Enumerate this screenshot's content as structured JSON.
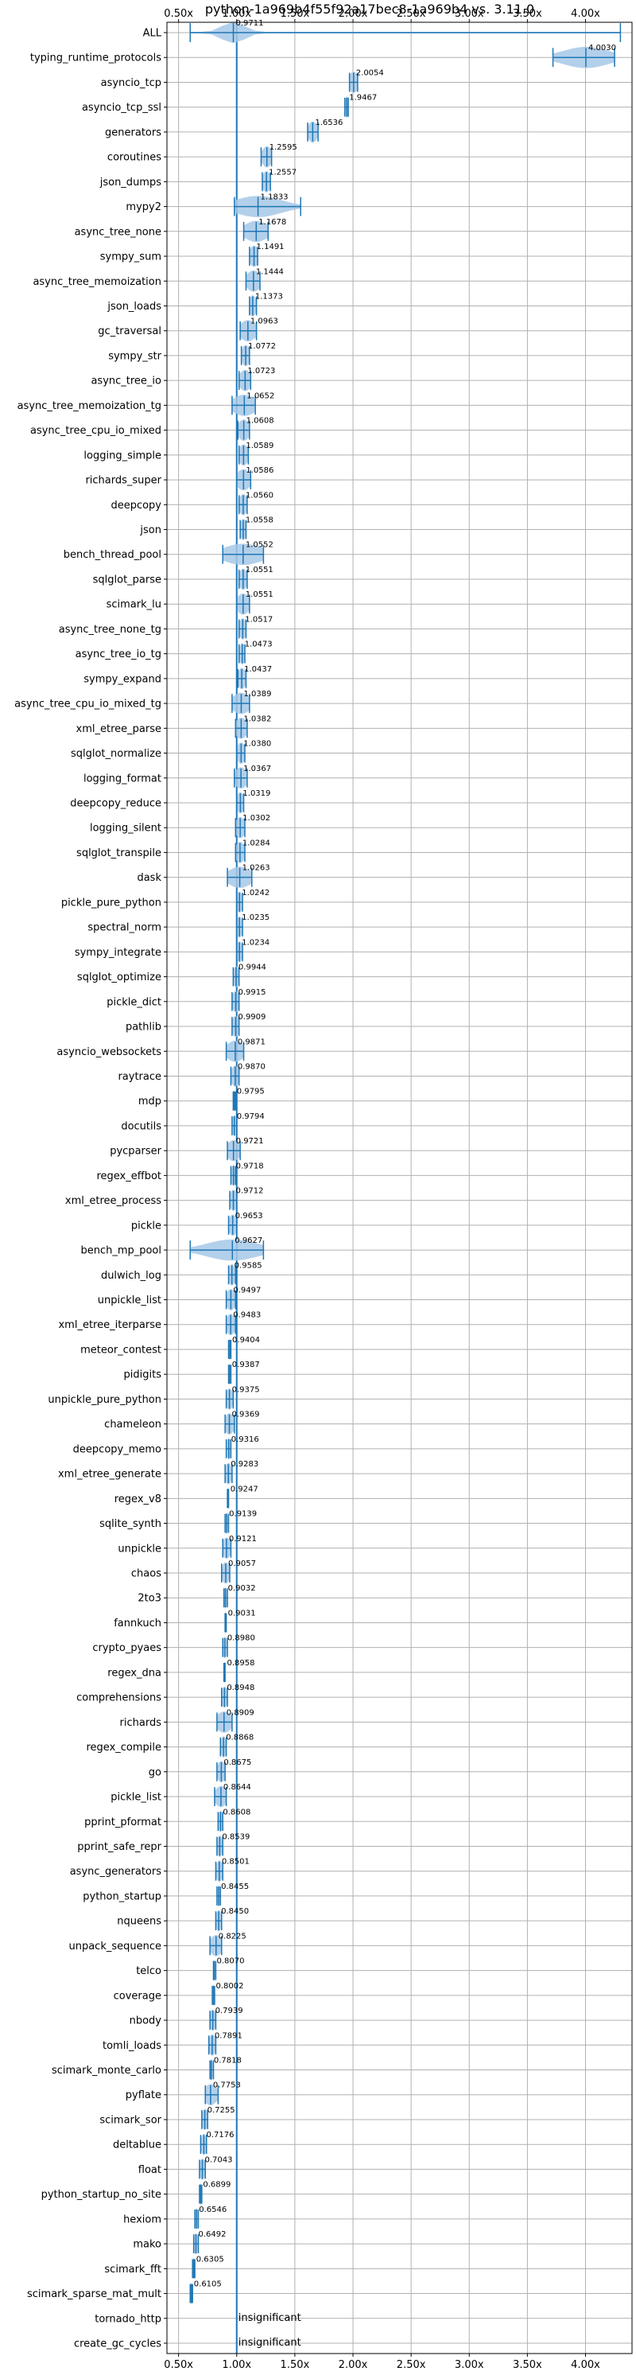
{
  "chart_data": {
    "type": "violin",
    "title": "python-1a969b4f55f92a17bec8-1a969b4 vs. 3.11.0",
    "xlabel": "",
    "ylabel": "",
    "xlim": [
      0.4,
      4.4
    ],
    "x_ticks": [
      0.5,
      1.0,
      1.5,
      2.0,
      2.5,
      3.0,
      3.5,
      4.0
    ],
    "x_tick_labels": [
      "0.50x",
      "1.00x",
      "1.50x",
      "2.00x",
      "2.50x",
      "3.00x",
      "3.50x",
      "4.00x"
    ],
    "reference_line": 1.0,
    "grid": true,
    "colors": {
      "violin": "#a6c8e8",
      "marker": "#1f77b4",
      "reference": "#1f77b4",
      "grid": "#b0b0b0"
    },
    "benchmarks": [
      {
        "name": "ALL",
        "value": 0.9711,
        "label": "0.9711",
        "lo": 0.6,
        "hi": 4.3,
        "w": 0.1
      },
      {
        "name": "typing_runtime_protocols",
        "value": 4.003,
        "label": "4.0030",
        "lo": 3.72,
        "hi": 4.25,
        "w": 0.2
      },
      {
        "name": "asyncio_tcp",
        "value": 2.0054,
        "label": "2.0054",
        "lo": 1.97,
        "hi": 2.04,
        "w": 0.04
      },
      {
        "name": "asyncio_tcp_ssl",
        "value": 1.9467,
        "label": "1.9467",
        "lo": 1.93,
        "hi": 1.96,
        "w": 0.015
      },
      {
        "name": "generators",
        "value": 1.6536,
        "label": "1.6536",
        "lo": 1.61,
        "hi": 1.7,
        "w": 0.04
      },
      {
        "name": "coroutines",
        "value": 1.2595,
        "label": "1.2595",
        "lo": 1.21,
        "hi": 1.3,
        "w": 0.04
      },
      {
        "name": "json_dumps",
        "value": 1.2557,
        "label": "1.2557",
        "lo": 1.22,
        "hi": 1.29,
        "w": 0.035
      },
      {
        "name": "mypy2",
        "value": 1.1833,
        "label": "1.1833",
        "lo": 0.98,
        "hi": 1.55,
        "w": 0.2
      },
      {
        "name": "async_tree_none",
        "value": 1.1678,
        "label": "1.1678",
        "lo": 1.06,
        "hi": 1.27,
        "w": 0.1
      },
      {
        "name": "sympy_sum",
        "value": 1.1491,
        "label": "1.1491",
        "lo": 1.11,
        "hi": 1.18,
        "w": 0.04
      },
      {
        "name": "async_tree_memoization",
        "value": 1.1444,
        "label": "1.1444",
        "lo": 1.08,
        "hi": 1.2,
        "w": 0.06
      },
      {
        "name": "json_loads",
        "value": 1.1373,
        "label": "1.1373",
        "lo": 1.11,
        "hi": 1.17,
        "w": 0.03
      },
      {
        "name": "gc_traversal",
        "value": 1.0963,
        "label": "1.0963",
        "lo": 1.03,
        "hi": 1.17,
        "w": 0.07
      },
      {
        "name": "sympy_str",
        "value": 1.0772,
        "label": "1.0772",
        "lo": 1.04,
        "hi": 1.11,
        "w": 0.035
      },
      {
        "name": "async_tree_io",
        "value": 1.0723,
        "label": "1.0723",
        "lo": 1.02,
        "hi": 1.12,
        "w": 0.05
      },
      {
        "name": "async_tree_memoization_tg",
        "value": 1.0652,
        "label": "1.0652",
        "lo": 0.96,
        "hi": 1.16,
        "w": 0.1
      },
      {
        "name": "async_tree_cpu_io_mixed",
        "value": 1.0608,
        "label": "1.0608",
        "lo": 1.01,
        "hi": 1.11,
        "w": 0.05
      },
      {
        "name": "logging_simple",
        "value": 1.0589,
        "label": "1.0589",
        "lo": 1.02,
        "hi": 1.1,
        "w": 0.04
      },
      {
        "name": "richards_super",
        "value": 1.0586,
        "label": "1.0586",
        "lo": 1.0,
        "hi": 1.12,
        "w": 0.06
      },
      {
        "name": "deepcopy",
        "value": 1.056,
        "label": "1.0560",
        "lo": 1.02,
        "hi": 1.09,
        "w": 0.035
      },
      {
        "name": "json",
        "value": 1.0558,
        "label": "1.0558",
        "lo": 1.03,
        "hi": 1.08,
        "w": 0.025
      },
      {
        "name": "bench_thread_pool",
        "value": 1.0552,
        "label": "1.0552",
        "lo": 0.88,
        "hi": 1.23,
        "w": 0.17
      },
      {
        "name": "sqlglot_parse",
        "value": 1.0551,
        "label": "1.0551",
        "lo": 1.02,
        "hi": 1.09,
        "w": 0.035
      },
      {
        "name": "scimark_lu",
        "value": 1.0551,
        "label": "1.0551",
        "lo": 1.0,
        "hi": 1.11,
        "w": 0.055
      },
      {
        "name": "async_tree_none_tg",
        "value": 1.0517,
        "label": "1.0517",
        "lo": 1.02,
        "hi": 1.08,
        "w": 0.03
      },
      {
        "name": "async_tree_io_tg",
        "value": 1.0473,
        "label": "1.0473",
        "lo": 1.02,
        "hi": 1.07,
        "w": 0.025
      },
      {
        "name": "sympy_expand",
        "value": 1.0437,
        "label": "1.0437",
        "lo": 1.01,
        "hi": 1.08,
        "w": 0.035
      },
      {
        "name": "async_tree_cpu_io_mixed_tg",
        "value": 1.0389,
        "label": "1.0389",
        "lo": 0.96,
        "hi": 1.11,
        "w": 0.075
      },
      {
        "name": "xml_etree_parse",
        "value": 1.0382,
        "label": "1.0382",
        "lo": 0.99,
        "hi": 1.09,
        "w": 0.05
      },
      {
        "name": "sqlglot_normalize",
        "value": 1.038,
        "label": "1.0380",
        "lo": 1.0,
        "hi": 1.07,
        "w": 0.035
      },
      {
        "name": "logging_format",
        "value": 1.0367,
        "label": "1.0367",
        "lo": 0.98,
        "hi": 1.09,
        "w": 0.055
      },
      {
        "name": "deepcopy_reduce",
        "value": 1.0319,
        "label": "1.0319",
        "lo": 1.0,
        "hi": 1.06,
        "w": 0.03
      },
      {
        "name": "logging_silent",
        "value": 1.0302,
        "label": "1.0302",
        "lo": 0.99,
        "hi": 1.07,
        "w": 0.04
      },
      {
        "name": "sqlglot_transpile",
        "value": 1.0284,
        "label": "1.0284",
        "lo": 0.99,
        "hi": 1.07,
        "w": 0.04
      },
      {
        "name": "dask",
        "value": 1.0263,
        "label": "1.0263",
        "lo": 0.92,
        "hi": 1.13,
        "w": 0.1
      },
      {
        "name": "pickle_pure_python",
        "value": 1.0242,
        "label": "1.0242",
        "lo": 1.0,
        "hi": 1.05,
        "w": 0.025
      },
      {
        "name": "spectral_norm",
        "value": 1.0235,
        "label": "1.0235",
        "lo": 1.0,
        "hi": 1.05,
        "w": 0.025
      },
      {
        "name": "sympy_integrate",
        "value": 1.0234,
        "label": "1.0234",
        "lo": 1.0,
        "hi": 1.05,
        "w": 0.025
      },
      {
        "name": "sqlglot_optimize",
        "value": 0.9944,
        "label": "0.9944",
        "lo": 0.97,
        "hi": 1.02,
        "w": 0.025
      },
      {
        "name": "pickle_dict",
        "value": 0.9915,
        "label": "0.9915",
        "lo": 0.96,
        "hi": 1.02,
        "w": 0.03
      },
      {
        "name": "pathlib",
        "value": 0.9909,
        "label": "0.9909",
        "lo": 0.96,
        "hi": 1.02,
        "w": 0.03
      },
      {
        "name": "asyncio_websockets",
        "value": 0.9871,
        "label": "0.9871",
        "lo": 0.91,
        "hi": 1.06,
        "w": 0.075
      },
      {
        "name": "raytrace",
        "value": 0.987,
        "label": "0.9870",
        "lo": 0.95,
        "hi": 1.02,
        "w": 0.035
      },
      {
        "name": "mdp",
        "value": 0.9795,
        "label": "0.9795",
        "lo": 0.97,
        "hi": 0.99,
        "w": 0.01
      },
      {
        "name": "docutils",
        "value": 0.9794,
        "label": "0.9794",
        "lo": 0.96,
        "hi": 1.0,
        "w": 0.02
      },
      {
        "name": "pycparser",
        "value": 0.9721,
        "label": "0.9721",
        "lo": 0.92,
        "hi": 1.03,
        "w": 0.055
      },
      {
        "name": "regex_effbot",
        "value": 0.9718,
        "label": "0.9718",
        "lo": 0.95,
        "hi": 0.99,
        "w": 0.02
      },
      {
        "name": "xml_etree_process",
        "value": 0.9712,
        "label": "0.9712",
        "lo": 0.94,
        "hi": 1.0,
        "w": 0.03
      },
      {
        "name": "pickle",
        "value": 0.9653,
        "label": "0.9653",
        "lo": 0.93,
        "hi": 1.0,
        "w": 0.035
      },
      {
        "name": "bench_mp_pool",
        "value": 0.9627,
        "label": "0.9627",
        "lo": 0.6,
        "hi": 1.23,
        "w": 0.22
      },
      {
        "name": "dulwich_log",
        "value": 0.9585,
        "label": "0.9585",
        "lo": 0.93,
        "hi": 0.99,
        "w": 0.03
      },
      {
        "name": "unpickle_list",
        "value": 0.9497,
        "label": "0.9497",
        "lo": 0.91,
        "hi": 0.99,
        "w": 0.04
      },
      {
        "name": "xml_etree_iterparse",
        "value": 0.9483,
        "label": "0.9483",
        "lo": 0.91,
        "hi": 0.99,
        "w": 0.04
      },
      {
        "name": "meteor_contest",
        "value": 0.9404,
        "label": "0.9404",
        "lo": 0.93,
        "hi": 0.95,
        "w": 0.01
      },
      {
        "name": "pidigits",
        "value": 0.9387,
        "label": "0.9387",
        "lo": 0.93,
        "hi": 0.95,
        "w": 0.01
      },
      {
        "name": "unpickle_pure_python",
        "value": 0.9375,
        "label": "0.9375",
        "lo": 0.91,
        "hi": 0.97,
        "w": 0.03
      },
      {
        "name": "chameleon",
        "value": 0.9369,
        "label": "0.9369",
        "lo": 0.9,
        "hi": 0.98,
        "w": 0.04
      },
      {
        "name": "deepcopy_memo",
        "value": 0.9316,
        "label": "0.9316",
        "lo": 0.91,
        "hi": 0.95,
        "w": 0.02
      },
      {
        "name": "xml_etree_generate",
        "value": 0.9283,
        "label": "0.9283",
        "lo": 0.9,
        "hi": 0.96,
        "w": 0.03
      },
      {
        "name": "regex_v8",
        "value": 0.9247,
        "label": "0.9247",
        "lo": 0.92,
        "hi": 0.93,
        "w": 0.008
      },
      {
        "name": "sqlite_synth",
        "value": 0.9139,
        "label": "0.9139",
        "lo": 0.9,
        "hi": 0.93,
        "w": 0.015
      },
      {
        "name": "unpickle",
        "value": 0.9121,
        "label": "0.9121",
        "lo": 0.88,
        "hi": 0.95,
        "w": 0.035
      },
      {
        "name": "chaos",
        "value": 0.9057,
        "label": "0.9057",
        "lo": 0.87,
        "hi": 0.94,
        "w": 0.035
      },
      {
        "name": "2to3",
        "value": 0.9032,
        "label": "0.9032",
        "lo": 0.89,
        "hi": 0.92,
        "w": 0.015
      },
      {
        "name": "fannkuch",
        "value": 0.9031,
        "label": "0.9031",
        "lo": 0.9,
        "hi": 0.91,
        "w": 0.008
      },
      {
        "name": "crypto_pyaes",
        "value": 0.898,
        "label": "0.8980",
        "lo": 0.88,
        "hi": 0.92,
        "w": 0.02
      },
      {
        "name": "regex_dna",
        "value": 0.8958,
        "label": "0.8958",
        "lo": 0.89,
        "hi": 0.9,
        "w": 0.008
      },
      {
        "name": "comprehensions",
        "value": 0.8948,
        "label": "0.8948",
        "lo": 0.87,
        "hi": 0.92,
        "w": 0.025
      },
      {
        "name": "richards",
        "value": 0.8909,
        "label": "0.8909",
        "lo": 0.83,
        "hi": 0.96,
        "w": 0.065
      },
      {
        "name": "regex_compile",
        "value": 0.8868,
        "label": "0.8868",
        "lo": 0.86,
        "hi": 0.91,
        "w": 0.025
      },
      {
        "name": "go",
        "value": 0.8675,
        "label": "0.8675",
        "lo": 0.83,
        "hi": 0.9,
        "w": 0.035
      },
      {
        "name": "pickle_list",
        "value": 0.8644,
        "label": "0.8644",
        "lo": 0.81,
        "hi": 0.91,
        "w": 0.05
      },
      {
        "name": "pprint_pformat",
        "value": 0.8608,
        "label": "0.8608",
        "lo": 0.84,
        "hi": 0.88,
        "w": 0.02
      },
      {
        "name": "pprint_safe_repr",
        "value": 0.8539,
        "label": "0.8539",
        "lo": 0.83,
        "hi": 0.88,
        "w": 0.025
      },
      {
        "name": "async_generators",
        "value": 0.8501,
        "label": "0.8501",
        "lo": 0.82,
        "hi": 0.88,
        "w": 0.03
      },
      {
        "name": "python_startup",
        "value": 0.8455,
        "label": "0.8455",
        "lo": 0.83,
        "hi": 0.86,
        "w": 0.015
      },
      {
        "name": "nqueens",
        "value": 0.845,
        "label": "0.8450",
        "lo": 0.82,
        "hi": 0.87,
        "w": 0.025
      },
      {
        "name": "unpack_sequence",
        "value": 0.8225,
        "label": "0.8225",
        "lo": 0.77,
        "hi": 0.87,
        "w": 0.05
      },
      {
        "name": "telco",
        "value": 0.807,
        "label": "0.8070",
        "lo": 0.8,
        "hi": 0.82,
        "w": 0.01
      },
      {
        "name": "coverage",
        "value": 0.8002,
        "label": "0.8002",
        "lo": 0.79,
        "hi": 0.81,
        "w": 0.01
      },
      {
        "name": "nbody",
        "value": 0.7939,
        "label": "0.7939",
        "lo": 0.77,
        "hi": 0.82,
        "w": 0.025
      },
      {
        "name": "tomli_loads",
        "value": 0.7891,
        "label": "0.7891",
        "lo": 0.76,
        "hi": 0.82,
        "w": 0.03
      },
      {
        "name": "scimark_monte_carlo",
        "value": 0.7818,
        "label": "0.7818",
        "lo": 0.77,
        "hi": 0.8,
        "w": 0.015
      },
      {
        "name": "pyflate",
        "value": 0.7753,
        "label": "0.7753",
        "lo": 0.73,
        "hi": 0.84,
        "w": 0.055
      },
      {
        "name": "scimark_sor",
        "value": 0.7255,
        "label": "0.7255",
        "lo": 0.7,
        "hi": 0.75,
        "w": 0.025
      },
      {
        "name": "deltablue",
        "value": 0.7176,
        "label": "0.7176",
        "lo": 0.69,
        "hi": 0.74,
        "w": 0.025
      },
      {
        "name": "float",
        "value": 0.7043,
        "label": "0.7043",
        "lo": 0.68,
        "hi": 0.73,
        "w": 0.025
      },
      {
        "name": "python_startup_no_site",
        "value": 0.6899,
        "label": "0.6899",
        "lo": 0.68,
        "hi": 0.7,
        "w": 0.01
      },
      {
        "name": "hexiom",
        "value": 0.6546,
        "label": "0.6546",
        "lo": 0.64,
        "hi": 0.67,
        "w": 0.015
      },
      {
        "name": "mako",
        "value": 0.6492,
        "label": "0.6492",
        "lo": 0.63,
        "hi": 0.67,
        "w": 0.02
      },
      {
        "name": "scimark_fft",
        "value": 0.6305,
        "label": "0.6305",
        "lo": 0.62,
        "hi": 0.64,
        "w": 0.01
      },
      {
        "name": "scimark_sparse_mat_mult",
        "value": 0.6105,
        "label": "0.6105",
        "lo": 0.6,
        "hi": 0.62,
        "w": 0.01
      },
      {
        "name": "tornado_http",
        "value": null,
        "label": "insignificant"
      },
      {
        "name": "create_gc_cycles",
        "value": null,
        "label": "insignificant"
      }
    ]
  }
}
